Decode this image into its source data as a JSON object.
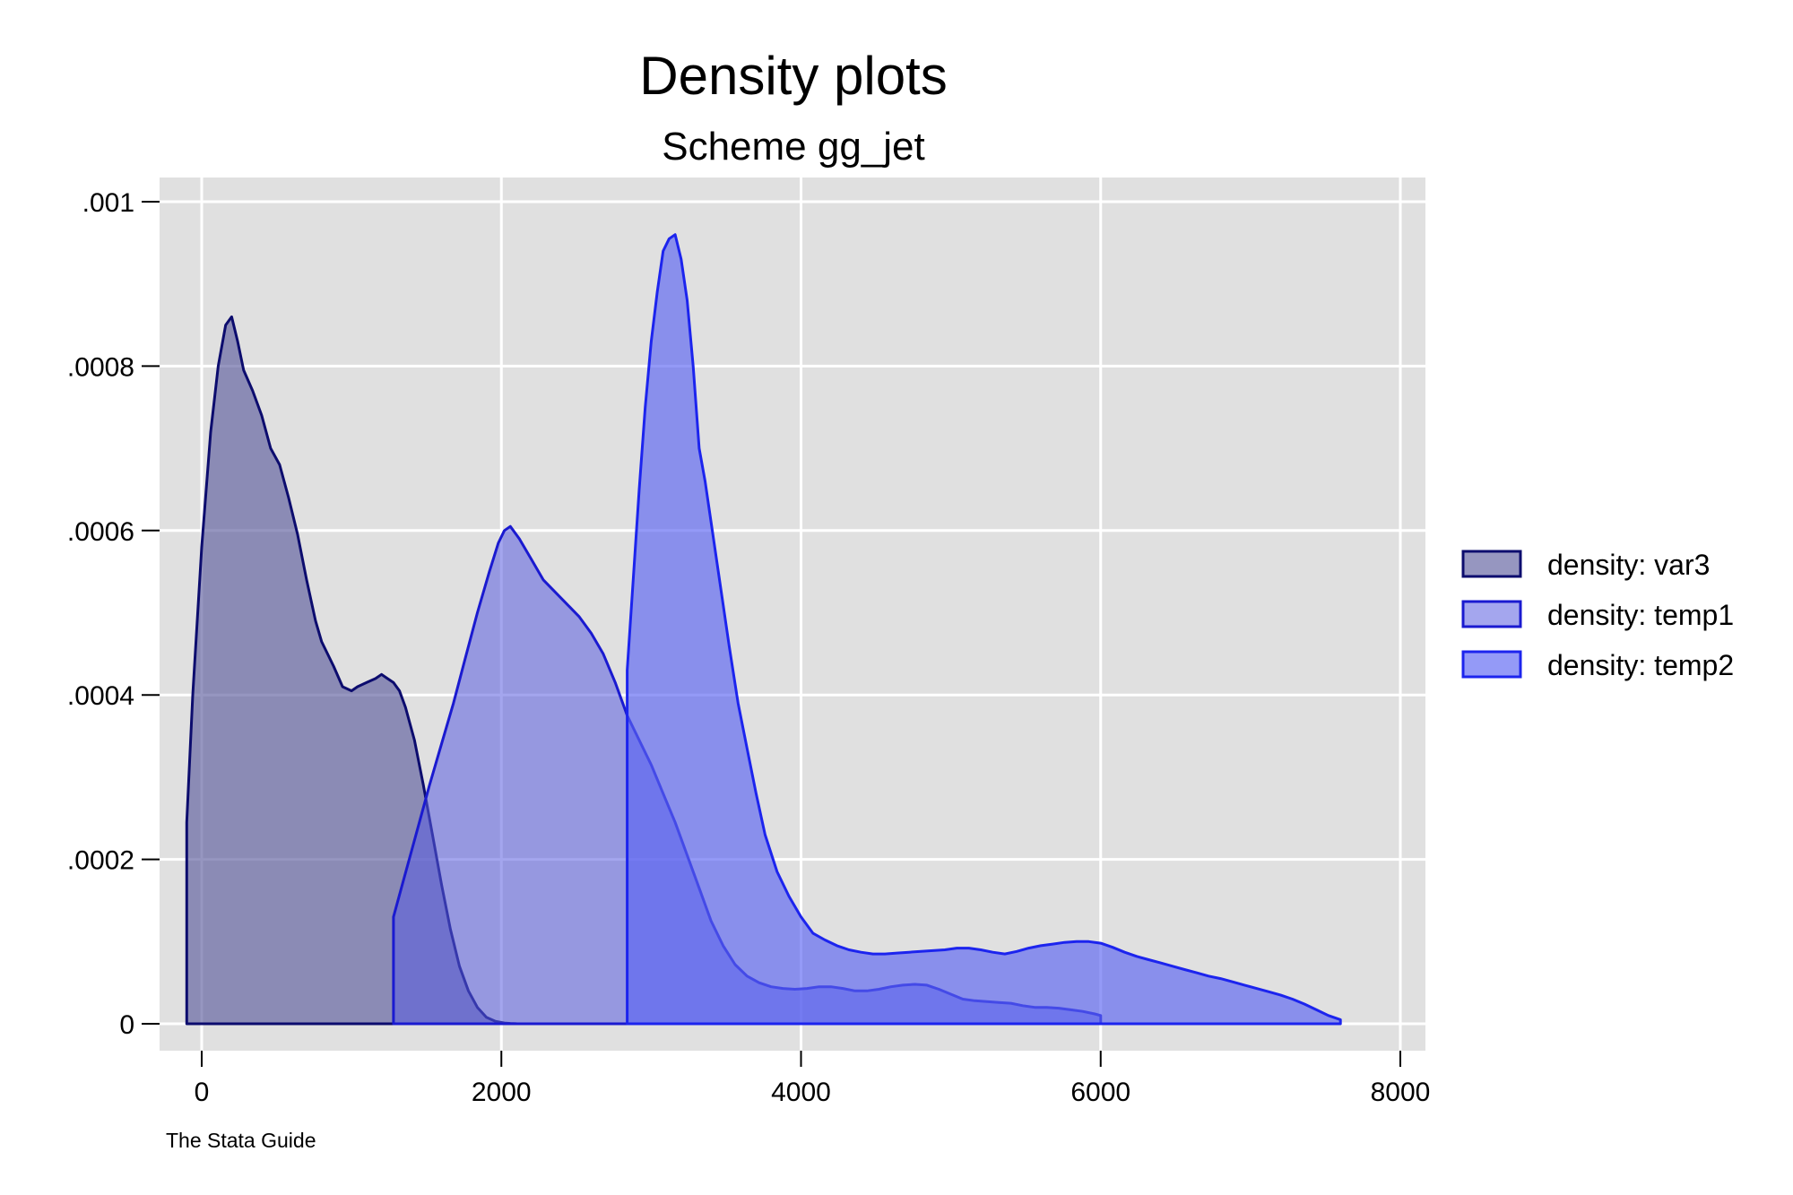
{
  "chart_data": {
    "type": "area",
    "title": "Density plots",
    "subtitle": "Scheme gg_jet",
    "note": "The Stata Guide",
    "xlabel": "",
    "ylabel": "",
    "xlim": [
      -250,
      8000
    ],
    "ylim": [
      -3e-05,
      0.00103
    ],
    "x_ticks": [
      0,
      2000,
      4000,
      6000,
      8000
    ],
    "x_tick_labels": [
      "0",
      "2000",
      "4000",
      "6000",
      "8000"
    ],
    "y_ticks": [
      0,
      0.0002,
      0.0004,
      0.0006,
      0.0008,
      0.001
    ],
    "y_tick_labels": [
      "0",
      ".0002",
      ".0004",
      ".0006",
      ".0008",
      ".001"
    ],
    "grid": true,
    "legend_position": "right",
    "colors": {
      "plot_bg": "#e0e0e0",
      "grid": "#ffffff"
    },
    "series": [
      {
        "name": "density: var3",
        "fill": "#5d5e9e",
        "fill_opacity": 0.65,
        "stroke": "#0c0c6e",
        "x": [
          -100,
          -60,
          0,
          60,
          110,
          160,
          200,
          240,
          280,
          340,
          400,
          460,
          520,
          580,
          640,
          700,
          760,
          800,
          880,
          940,
          1000,
          1040,
          1100,
          1160,
          1200,
          1240,
          1280,
          1320,
          1360,
          1420,
          1480,
          1540,
          1600,
          1660,
          1720,
          1780,
          1840,
          1900,
          1960,
          2020,
          2060,
          2100
        ],
        "y": [
          0.000245,
          0.0004,
          0.00058,
          0.00072,
          0.0008,
          0.00085,
          0.00086,
          0.00083,
          0.000795,
          0.00077,
          0.00074,
          0.0007,
          0.00068,
          0.00064,
          0.000595,
          0.00054,
          0.00049,
          0.000465,
          0.000435,
          0.00041,
          0.000405,
          0.00041,
          0.000415,
          0.00042,
          0.000425,
          0.00042,
          0.000415,
          0.000405,
          0.000385,
          0.000345,
          0.00029,
          0.00023,
          0.00017,
          0.000115,
          7e-05,
          4e-05,
          2e-05,
          8e-06,
          3e-06,
          1e-06,
          4e-07,
          1e-07
        ]
      },
      {
        "name": "density: temp1",
        "fill": "#5a5ce0",
        "fill_opacity": 0.55,
        "stroke": "#1a1ad0",
        "x": [
          1280,
          1340,
          1400,
          1460,
          1520,
          1600,
          1680,
          1760,
          1840,
          1920,
          1980,
          2020,
          2060,
          2120,
          2200,
          2280,
          2360,
          2440,
          2520,
          2600,
          2680,
          2760,
          2840,
          2920,
          3000,
          3080,
          3160,
          3240,
          3320,
          3400,
          3480,
          3560,
          3640,
          3720,
          3800,
          3880,
          3960,
          4040,
          4120,
          4200,
          4280,
          4360,
          4440,
          4520,
          4600,
          4680,
          4760,
          4840,
          4920,
          5000,
          5080,
          5160,
          5240,
          5320,
          5400,
          5480,
          5560,
          5640,
          5720,
          5800,
          5880,
          5960,
          6000
        ],
        "y": [
          0.00013,
          0.00017,
          0.00021,
          0.00025,
          0.00029,
          0.00034,
          0.00039,
          0.000445,
          0.0005,
          0.00055,
          0.000585,
          0.0006,
          0.000605,
          0.00059,
          0.000565,
          0.00054,
          0.000525,
          0.00051,
          0.000495,
          0.000475,
          0.00045,
          0.000415,
          0.000375,
          0.000345,
          0.000315,
          0.00028,
          0.000245,
          0.000205,
          0.000165,
          0.000125,
          9.5e-05,
          7.2e-05,
          5.8e-05,
          5e-05,
          4.5e-05,
          4.3e-05,
          4.2e-05,
          4.3e-05,
          4.5e-05,
          4.5e-05,
          4.3e-05,
          4e-05,
          4e-05,
          4.2e-05,
          4.5e-05,
          4.7e-05,
          4.8e-05,
          4.7e-05,
          4.2e-05,
          3.6e-05,
          3e-05,
          2.8e-05,
          2.7e-05,
          2.6e-05,
          2.5e-05,
          2.2e-05,
          2e-05,
          2e-05,
          1.9e-05,
          1.7e-05,
          1.5e-05,
          1.2e-05,
          1e-05
        ]
      },
      {
        "name": "density: temp2",
        "fill": "#5a64f2",
        "fill_opacity": 0.65,
        "stroke": "#1c24ee",
        "x": [
          2840,
          2840,
          2880,
          2920,
          2960,
          3000,
          3040,
          3080,
          3120,
          3160,
          3200,
          3240,
          3280,
          3320,
          3360,
          3400,
          3440,
          3480,
          3520,
          3580,
          3640,
          3700,
          3760,
          3840,
          3920,
          4000,
          4080,
          4160,
          4240,
          4320,
          4400,
          4480,
          4560,
          4640,
          4720,
          4800,
          4880,
          4960,
          5040,
          5120,
          5200,
          5280,
          5360,
          5440,
          5520,
          5600,
          5680,
          5760,
          5840,
          5920,
          6000,
          6080,
          6160,
          6240,
          6320,
          6400,
          6480,
          6560,
          6640,
          6720,
          6800,
          6880,
          6960,
          7040,
          7120,
          7200,
          7280,
          7360,
          7440,
          7520,
          7600
        ],
        "y": [
          0.0,
          0.00043,
          0.00054,
          0.00065,
          0.00075,
          0.00083,
          0.00089,
          0.00094,
          0.000955,
          0.00096,
          0.00093,
          0.00088,
          0.0008,
          0.0007,
          0.00066,
          0.00061,
          0.00056,
          0.00051,
          0.00046,
          0.00039,
          0.000335,
          0.00028,
          0.00023,
          0.000185,
          0.000155,
          0.00013,
          0.00011,
          0.000102,
          9.5e-05,
          9e-05,
          8.7e-05,
          8.5e-05,
          8.5e-05,
          8.6e-05,
          8.7e-05,
          8.8e-05,
          8.9e-05,
          9e-05,
          9.2e-05,
          9.2e-05,
          9e-05,
          8.7e-05,
          8.5e-05,
          8.8e-05,
          9.2e-05,
          9.5e-05,
          9.7e-05,
          9.9e-05,
          0.0001,
          0.0001,
          9.8e-05,
          9.3e-05,
          8.7e-05,
          8.2e-05,
          7.8e-05,
          7.4e-05,
          7e-05,
          6.6e-05,
          6.2e-05,
          5.8e-05,
          5.5e-05,
          5.1e-05,
          4.7e-05,
          4.3e-05,
          3.9e-05,
          3.5e-05,
          3e-05,
          2.4e-05,
          1.7e-05,
          1e-05,
          5e-06
        ]
      }
    ]
  }
}
